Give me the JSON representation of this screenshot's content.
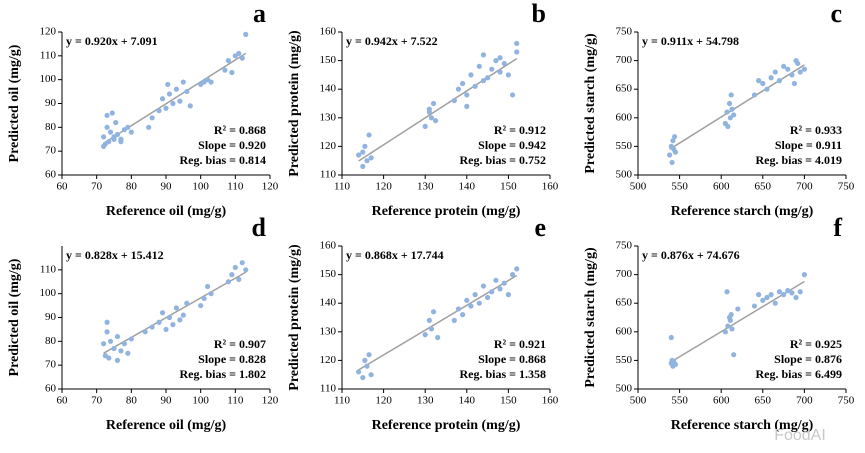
{
  "chart_data": [
    {
      "type": "scatter",
      "panel_label": "a",
      "equation": "y = 0.920x + 7.091",
      "fit": {
        "slope": 0.92,
        "intercept": 7.091
      },
      "stats": [
        "R² = 0.868",
        "Slope = 0.920",
        "Reg. bias = 0.814"
      ],
      "x_label": "Reference oil (mg/g)",
      "y_label": "Predicted oil (mg/g)",
      "color": "#91b3e0",
      "xlim": [
        60,
        120
      ],
      "xticks": [
        60,
        70,
        80,
        90,
        100,
        110,
        120
      ],
      "ylim": [
        60,
        120
      ],
      "yticks": [
        60,
        70,
        80,
        90,
        100,
        110,
        120
      ],
      "x": [
        72,
        72.5,
        73,
        73.5,
        74,
        74.5,
        75,
        75.5,
        76,
        77,
        78,
        79,
        80,
        72,
        73,
        75,
        77,
        85,
        86,
        88,
        89,
        90,
        90.5,
        91,
        92,
        93,
        94,
        95,
        96,
        97,
        100,
        101,
        102,
        103,
        107,
        108,
        109,
        110,
        111,
        112,
        113
      ],
      "y": [
        76,
        73,
        80,
        74,
        78,
        86,
        75,
        82,
        77,
        74,
        79,
        80,
        78,
        72,
        85,
        76,
        75,
        80,
        84,
        87,
        92,
        88,
        98,
        94,
        90,
        96,
        91,
        99,
        95,
        89,
        98,
        99,
        100,
        99,
        104,
        108,
        103,
        110,
        111,
        109,
        119
      ]
    },
    {
      "type": "scatter",
      "panel_label": "b",
      "equation": "y = 0.942x + 7.522",
      "fit": {
        "slope": 0.942,
        "intercept": 7.522
      },
      "stats": [
        "R² = 0.912",
        "Slope = 0.942",
        "Reg. bias = 0.752"
      ],
      "x_label": "Reference protein (mg/g)",
      "y_label": "Predicted protein (mg/g)",
      "color": "#91b3e0",
      "xlim": [
        110,
        160
      ],
      "xticks": [
        110,
        120,
        130,
        140,
        150,
        160
      ],
      "ylim": [
        110,
        160
      ],
      "yticks": [
        110,
        120,
        130,
        140,
        150,
        160
      ],
      "x": [
        114,
        115,
        115.5,
        116,
        116.5,
        117,
        115,
        130,
        131,
        131.5,
        132,
        132.5,
        131,
        137,
        138,
        139,
        140,
        141,
        142,
        143,
        144,
        145,
        146,
        147,
        148,
        149,
        150,
        151,
        152,
        140,
        144,
        148,
        152
      ],
      "y": [
        117,
        113,
        120,
        115,
        124,
        116,
        118,
        127,
        133,
        130,
        135,
        129,
        132,
        136,
        140,
        142,
        138,
        145,
        141,
        148,
        143,
        144,
        147,
        150,
        146,
        149,
        145,
        138,
        156,
        134,
        152,
        151,
        153
      ]
    },
    {
      "type": "scatter",
      "panel_label": "c",
      "equation": "y = 0.911x + 54.798",
      "fit": {
        "slope": 0.911,
        "intercept": 54.798
      },
      "stats": [
        "R² = 0.933",
        "Slope = 0.911",
        "Reg. bias = 4.019"
      ],
      "x_label": "Reference starch (mg/g)",
      "y_label": "Predicted starch (mg/g)",
      "color": "#91b3e0",
      "xlim": [
        500,
        750
      ],
      "xticks": [
        500,
        550,
        600,
        650,
        700,
        750
      ],
      "ylim": [
        500,
        750
      ],
      "yticks": [
        500,
        550,
        600,
        650,
        700,
        750
      ],
      "x": [
        538,
        540,
        541,
        542,
        543,
        544,
        545,
        605,
        607,
        608,
        610,
        611,
        612,
        613,
        615,
        640,
        645,
        650,
        655,
        660,
        665,
        670,
        675,
        680,
        685,
        690,
        695,
        700,
        688,
        692
      ],
      "y": [
        535,
        550,
        522,
        560,
        545,
        567,
        540,
        590,
        610,
        585,
        625,
        600,
        640,
        615,
        605,
        640,
        665,
        660,
        650,
        670,
        680,
        665,
        690,
        685,
        675,
        700,
        680,
        685,
        660,
        695
      ]
    },
    {
      "type": "scatter",
      "panel_label": "d",
      "equation": "y = 0.828x + 15.412",
      "fit": {
        "slope": 0.828,
        "intercept": 15.412
      },
      "stats": [
        "R² = 0.907",
        "Slope = 0.828",
        "Reg. bias = 1.802"
      ],
      "x_label": "Reference oil (mg/g)",
      "y_label": "Predicted oil (mg/g)",
      "color": "#91b3e0",
      "xlim": [
        60,
        120
      ],
      "xticks": [
        60,
        70,
        80,
        90,
        100,
        110,
        120
      ],
      "ylim": [
        60,
        120
      ],
      "yticks": [
        60,
        70,
        80,
        90,
        100,
        110
      ],
      "x": [
        72,
        72.5,
        73,
        73.5,
        74,
        75,
        76,
        77,
        78,
        79,
        80,
        73,
        76,
        84,
        86,
        88,
        89,
        90,
        91,
        92,
        93,
        94,
        95,
        96,
        100,
        101,
        102,
        103,
        108,
        109,
        110,
        111,
        112,
        113
      ],
      "y": [
        79,
        74,
        84,
        73,
        80,
        77,
        82,
        76,
        79,
        75,
        81,
        88,
        72,
        84,
        86,
        88,
        92,
        85,
        90,
        87,
        94,
        89,
        91,
        96,
        95,
        98,
        103,
        100,
        105,
        108,
        111,
        106,
        113,
        110
      ]
    },
    {
      "type": "scatter",
      "panel_label": "e",
      "equation": "y = 0.868x + 17.744",
      "fit": {
        "slope": 0.868,
        "intercept": 17.744
      },
      "stats": [
        "R² = 0.921",
        "Slope = 0.868",
        "Reg. bias = 1.358"
      ],
      "x_label": "Reference protein (mg/g)",
      "y_label": "Predicted protein (mg/g)",
      "color": "#91b3e0",
      "xlim": [
        110,
        160
      ],
      "xticks": [
        110,
        120,
        130,
        140,
        150,
        160
      ],
      "ylim": [
        110,
        160
      ],
      "yticks": [
        110,
        120,
        130,
        140,
        150,
        160
      ],
      "x": [
        114,
        115,
        115.5,
        116,
        116.5,
        117,
        130,
        131,
        131.5,
        132,
        133,
        137,
        138,
        139,
        140,
        141,
        142,
        143,
        144,
        145,
        146,
        147,
        148,
        149,
        150,
        151,
        152
      ],
      "y": [
        116,
        114,
        120,
        118,
        122,
        115,
        129,
        134,
        131,
        137,
        128,
        134,
        138,
        136,
        141,
        139,
        143,
        140,
        146,
        142,
        144,
        148,
        145,
        147,
        143,
        150,
        152
      ]
    },
    {
      "type": "scatter",
      "panel_label": "f",
      "equation": "y = 0.876x + 74.676",
      "fit": {
        "slope": 0.876,
        "intercept": 74.676
      },
      "stats": [
        "R² = 0.925",
        "Slope = 0.876",
        "Reg. bias = 6.499"
      ],
      "x_label": "Reference starch (mg/g)",
      "y_label": "Predicted starch (mg/g)",
      "color": "#91b3e0",
      "xlim": [
        500,
        750
      ],
      "xticks": [
        500,
        550,
        600,
        650,
        700,
        750
      ],
      "ylim": [
        500,
        750
      ],
      "yticks": [
        500,
        550,
        600,
        650,
        700,
        750
      ],
      "x": [
        540,
        541,
        542,
        543,
        545,
        605,
        607,
        608,
        610,
        611,
        612,
        613,
        615,
        620,
        640,
        645,
        650,
        655,
        660,
        665,
        670,
        675,
        680,
        685,
        690,
        695,
        700,
        540
      ],
      "y": [
        545,
        550,
        540,
        548,
        543,
        600,
        670,
        610,
        625,
        620,
        630,
        605,
        560,
        640,
        645,
        665,
        655,
        660,
        665,
        650,
        670,
        665,
        672,
        668,
        660,
        670,
        700,
        590
      ]
    }
  ],
  "watermark": "FoodAI"
}
